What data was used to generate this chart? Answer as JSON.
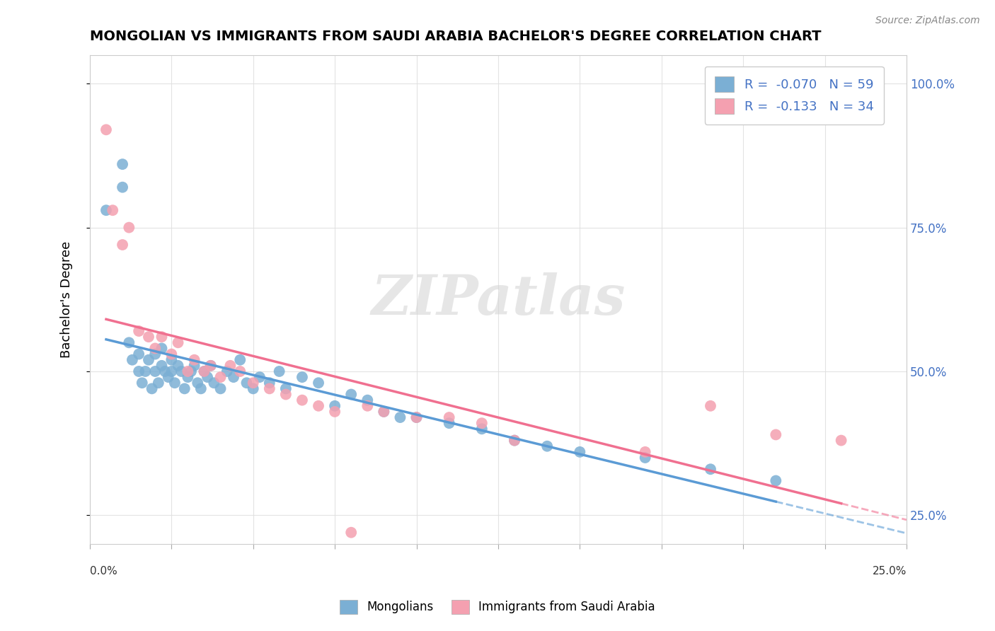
{
  "title": "MONGOLIAN VS IMMIGRANTS FROM SAUDI ARABIA BACHELOR'S DEGREE CORRELATION CHART",
  "source_text": "Source: ZipAtlas.com",
  "ylabel": "Bachelor's Degree",
  "legend_entries": [
    {
      "label": "R =  -0.070   N = 59",
      "color": "#a8c4e0"
    },
    {
      "label": "R =  -0.133   N = 34",
      "color": "#f4b8c1"
    }
  ],
  "mongolian_color": "#7bafd4",
  "saudi_color": "#f4a0b0",
  "trend_mongolian_color": "#5b9bd5",
  "trend_saudi_color": "#f07090",
  "xmin": 0.0,
  "xmax": 0.25,
  "ymin": 0.2,
  "ymax": 1.05,
  "mongolian_x": [
    0.005,
    0.01,
    0.01,
    0.012,
    0.013,
    0.015,
    0.015,
    0.016,
    0.017,
    0.018,
    0.019,
    0.02,
    0.02,
    0.021,
    0.022,
    0.022,
    0.023,
    0.024,
    0.025,
    0.025,
    0.026,
    0.027,
    0.028,
    0.029,
    0.03,
    0.031,
    0.032,
    0.033,
    0.034,
    0.035,
    0.036,
    0.037,
    0.038,
    0.04,
    0.042,
    0.044,
    0.046,
    0.048,
    0.05,
    0.052,
    0.055,
    0.058,
    0.06,
    0.065,
    0.07,
    0.075,
    0.08,
    0.085,
    0.09,
    0.095,
    0.1,
    0.11,
    0.12,
    0.13,
    0.14,
    0.15,
    0.17,
    0.19,
    0.21
  ],
  "mongolian_y": [
    0.78,
    0.82,
    0.86,
    0.55,
    0.52,
    0.5,
    0.53,
    0.48,
    0.5,
    0.52,
    0.47,
    0.5,
    0.53,
    0.48,
    0.51,
    0.54,
    0.5,
    0.49,
    0.5,
    0.52,
    0.48,
    0.51,
    0.5,
    0.47,
    0.49,
    0.5,
    0.51,
    0.48,
    0.47,
    0.5,
    0.49,
    0.51,
    0.48,
    0.47,
    0.5,
    0.49,
    0.52,
    0.48,
    0.47,
    0.49,
    0.48,
    0.5,
    0.47,
    0.49,
    0.48,
    0.44,
    0.46,
    0.45,
    0.43,
    0.42,
    0.42,
    0.41,
    0.4,
    0.38,
    0.37,
    0.36,
    0.35,
    0.33,
    0.31
  ],
  "saudi_x": [
    0.005,
    0.007,
    0.01,
    0.012,
    0.015,
    0.018,
    0.02,
    0.022,
    0.025,
    0.027,
    0.03,
    0.032,
    0.035,
    0.037,
    0.04,
    0.043,
    0.046,
    0.05,
    0.055,
    0.06,
    0.065,
    0.07,
    0.075,
    0.08,
    0.085,
    0.09,
    0.1,
    0.11,
    0.12,
    0.13,
    0.17,
    0.19,
    0.21,
    0.23
  ],
  "saudi_y": [
    0.92,
    0.78,
    0.72,
    0.75,
    0.57,
    0.56,
    0.54,
    0.56,
    0.53,
    0.55,
    0.5,
    0.52,
    0.5,
    0.51,
    0.49,
    0.51,
    0.5,
    0.48,
    0.47,
    0.46,
    0.45,
    0.44,
    0.43,
    0.22,
    0.44,
    0.43,
    0.42,
    0.42,
    0.41,
    0.38,
    0.36,
    0.44,
    0.39,
    0.38
  ]
}
